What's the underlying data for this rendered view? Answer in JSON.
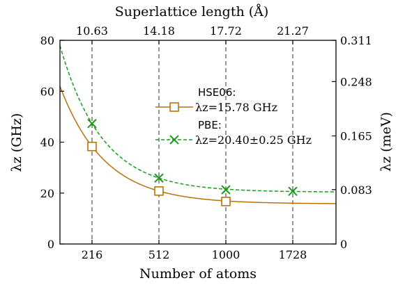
{
  "chart_data": {
    "type": "line",
    "title": "",
    "xlabel": "Number of atoms",
    "x2label": "Superlattice length (Å)",
    "ylabel": "λz  (GHz)",
    "y2label": "λz (meV)",
    "x_ticks": [
      "216",
      "512",
      "1000",
      "1728"
    ],
    "x2_ticks": [
      "10.63",
      "14.18",
      "17.72",
      "21.27"
    ],
    "y_ticks": [
      "0",
      "20",
      "40",
      "60",
      "80"
    ],
    "y2_ticks": [
      "0",
      "0.083",
      "0.165",
      "0.248",
      "0.311"
    ],
    "ylim": [
      0,
      80
    ],
    "y2lim": [
      0,
      0.311
    ],
    "grid": "vertical dashed lines at x ticks",
    "legend_position": "center-right",
    "series": [
      {
        "name": "HSE06:",
        "legend_value": "λz=15.78 GHz",
        "color": "#b8720c",
        "line_style": "solid",
        "marker": "square",
        "fit_limit": 15.78,
        "x": [
          "216",
          "512",
          "1000"
        ],
        "y": [
          38.3,
          20.8,
          16.7
        ]
      },
      {
        "name": "PBE:",
        "legend_value": "λz=20.40±0.25 GHz",
        "color": "#1a9b1a",
        "line_style": "dashed",
        "marker": "x",
        "fit_limit": 20.4,
        "x": [
          "216",
          "512",
          "1000",
          "1728"
        ],
        "y": [
          47.3,
          25.9,
          21.3,
          20.7
        ]
      }
    ]
  }
}
